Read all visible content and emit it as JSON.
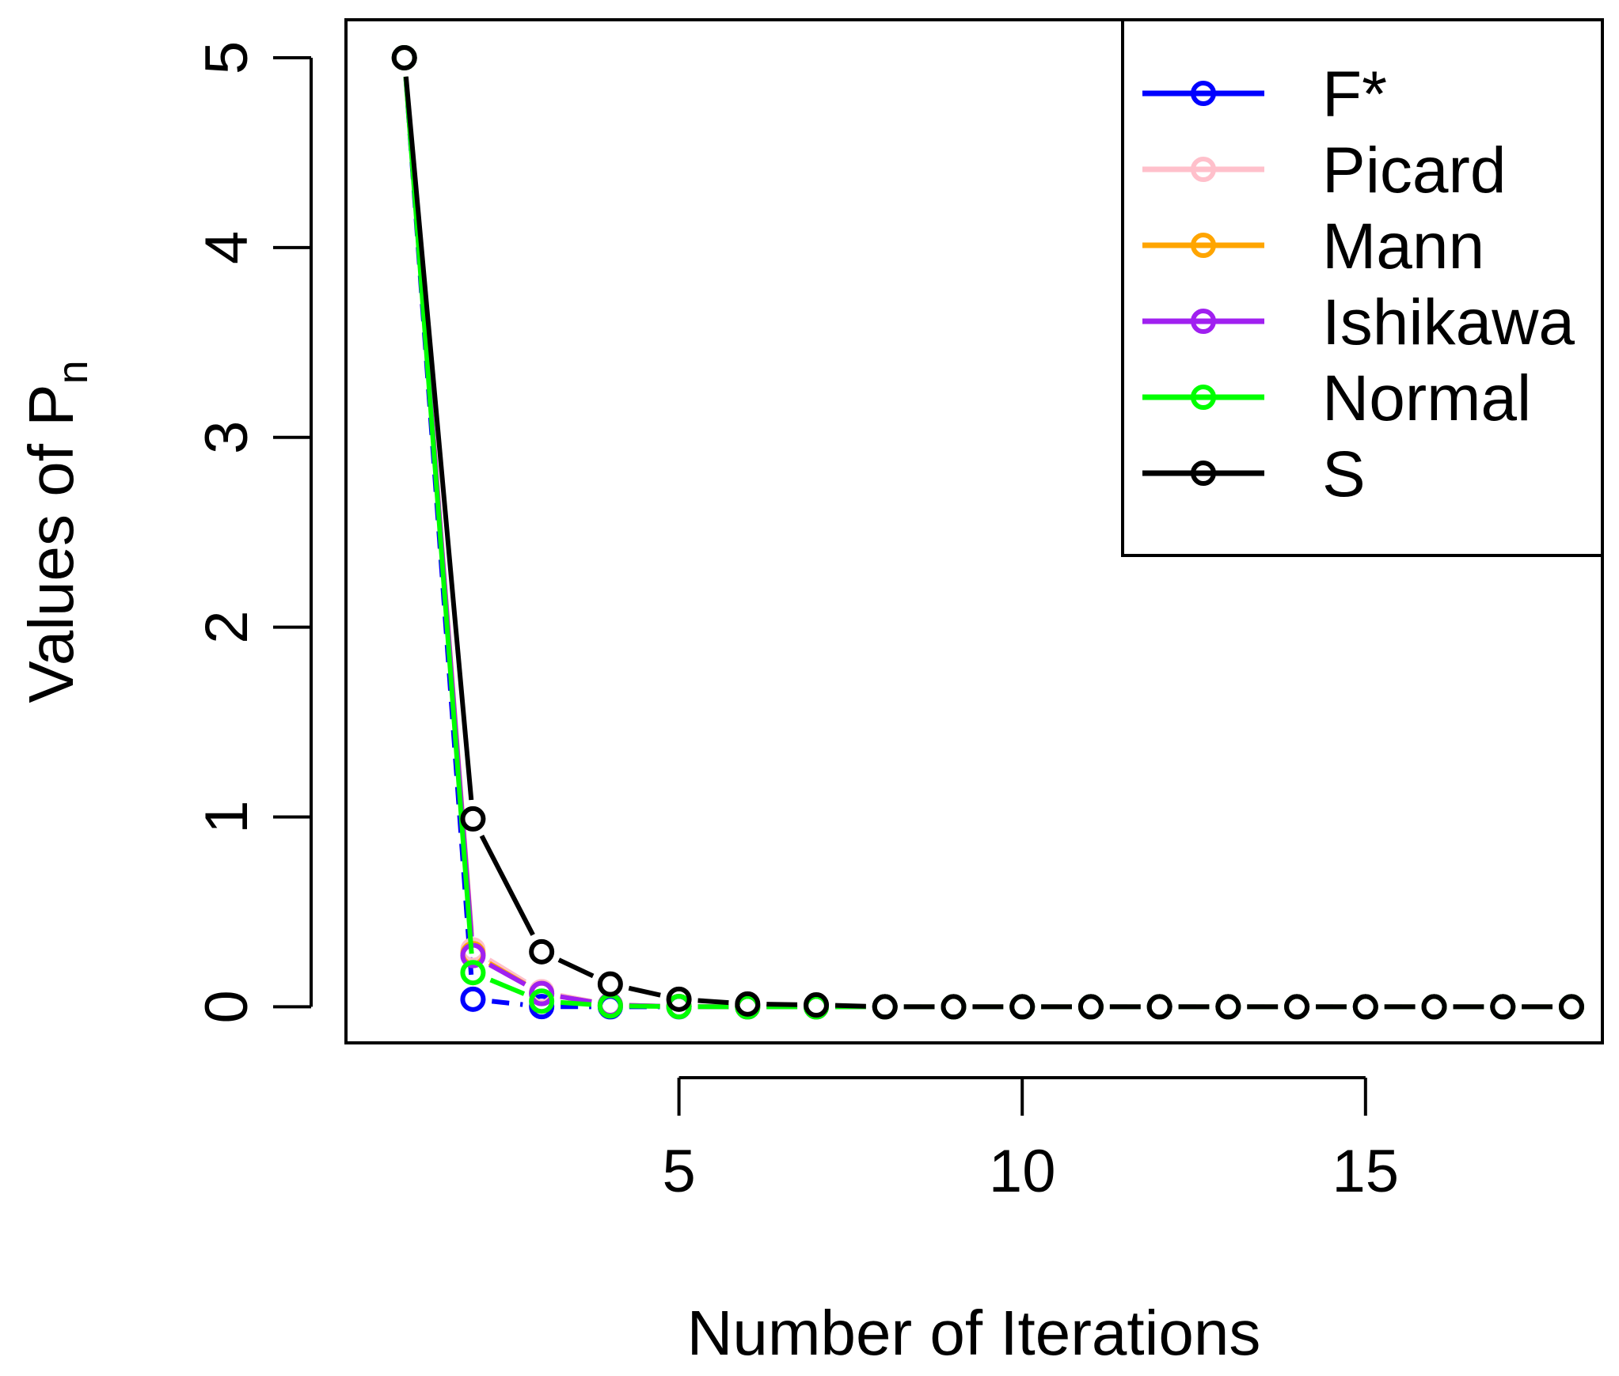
{
  "chart_data": {
    "type": "line",
    "title": "",
    "xlabel": "Number of Iterations",
    "ylabel": "Values of P",
    "ylabel_subscript": "n",
    "xlim": [
      0.15,
      18.45
    ],
    "ylim": [
      -0.19,
      5.2
    ],
    "xticks": [
      5,
      10,
      15
    ],
    "yticks": [
      0,
      1,
      2,
      3,
      4,
      5
    ],
    "xtick_labels": [
      "5",
      "10",
      "15"
    ],
    "ytick_labels": [
      "0",
      "1",
      "2",
      "3",
      "4",
      "5"
    ],
    "grid": false,
    "legend_position": "top-right",
    "series": [
      {
        "name": "F*",
        "color": "#0000ff",
        "dashed": true,
        "x": [
          1,
          2,
          3,
          4,
          5,
          6,
          7,
          8,
          9,
          10,
          11,
          12,
          13,
          14,
          15,
          16,
          17,
          18
        ],
        "y": [
          5,
          0.04,
          0.001,
          0,
          0,
          0,
          0,
          0,
          0,
          0,
          0,
          0,
          0,
          0,
          0,
          0,
          0,
          0
        ]
      },
      {
        "name": "Picard",
        "color": "#ffc0cb",
        "dashed": false,
        "x": [
          1,
          2,
          3,
          4,
          5,
          6,
          7,
          8,
          9,
          10,
          11,
          12,
          13,
          14,
          15,
          16,
          17,
          18
        ],
        "y": [
          5,
          0.3,
          0.08,
          0.01,
          0.001,
          0,
          0,
          0,
          0,
          0,
          0,
          0,
          0,
          0,
          0,
          0,
          0,
          0
        ]
      },
      {
        "name": "Mann",
        "color": "#ffa500",
        "dashed": false,
        "x": [
          1,
          2,
          3,
          4,
          5,
          6,
          7,
          8,
          9,
          10,
          11,
          12,
          13,
          14,
          15,
          16,
          17,
          18
        ],
        "y": [
          5,
          0.28,
          0.07,
          0.01,
          0.001,
          0,
          0,
          0,
          0,
          0,
          0,
          0,
          0,
          0,
          0,
          0,
          0,
          0
        ]
      },
      {
        "name": "Ishikawa",
        "color": "#a020f0",
        "dashed": false,
        "x": [
          1,
          2,
          3,
          4,
          5,
          6,
          7,
          8,
          9,
          10,
          11,
          12,
          13,
          14,
          15,
          16,
          17,
          18
        ],
        "y": [
          5,
          0.27,
          0.07,
          0.01,
          0.001,
          0,
          0,
          0,
          0,
          0,
          0,
          0,
          0,
          0,
          0,
          0,
          0,
          0
        ]
      },
      {
        "name": "Normal",
        "color": "#00ff00",
        "dashed": false,
        "x": [
          1,
          2,
          3,
          4,
          5,
          6,
          7,
          8,
          9,
          10,
          11,
          12,
          13,
          14,
          15,
          16,
          17,
          18
        ],
        "y": [
          5,
          0.18,
          0.03,
          0.005,
          0.001,
          0,
          0,
          0,
          0,
          0,
          0,
          0,
          0,
          0,
          0,
          0,
          0,
          0
        ]
      },
      {
        "name": "S",
        "color": "#000000",
        "dashed": false,
        "x": [
          1,
          2,
          3,
          4,
          5,
          6,
          7,
          8,
          9,
          10,
          11,
          12,
          13,
          14,
          15,
          16,
          17,
          18
        ],
        "y": [
          5,
          0.99,
          0.29,
          0.12,
          0.04,
          0.015,
          0.01,
          0,
          0,
          0,
          0,
          0,
          0,
          0,
          0,
          0,
          0,
          0
        ]
      }
    ]
  }
}
